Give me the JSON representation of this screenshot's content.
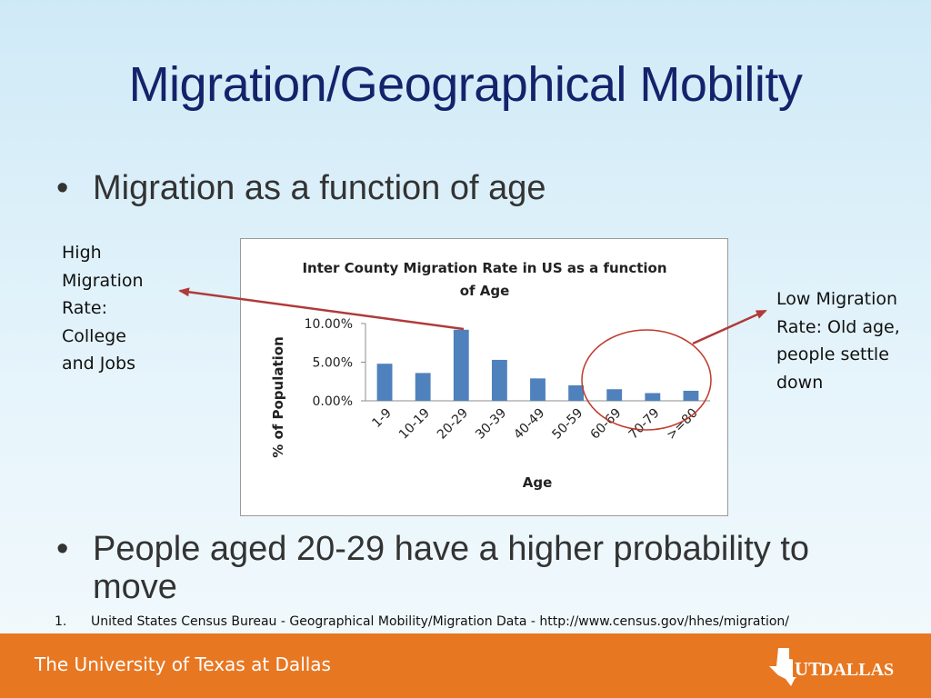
{
  "slide": {
    "title": "Migration/Geographical Mobility",
    "bullets": [
      "Migration as a function of age",
      "People aged 20-29 have a higher probability to move"
    ],
    "bullet_symbol": "•"
  },
  "annotations": {
    "left_lines": [
      "High",
      "Migration",
      "Rate:",
      "College",
      "and Jobs"
    ],
    "right_lines": [
      "Low Migration",
      "Rate: Old age,",
      "people settle",
      "down"
    ],
    "arrow_color": "#b03a3a",
    "circle_color": "#c0392b"
  },
  "footnote": {
    "number": "1.",
    "text": "United States Census Bureau - Geographical Mobility/Migration Data - http://www.census.gov/hhes/migration/"
  },
  "footer": {
    "university": "The University of Texas at Dallas",
    "logo_text": "UT DALLAS",
    "logo_ut": "UT",
    "logo_dallas": "DALLAS",
    "color": "#e87722"
  },
  "chart_data": {
    "type": "bar",
    "title_lines": [
      "Inter County Migration Rate in US as a function",
      "of Age"
    ],
    "xlabel": "Age",
    "ylabel": "% of Population",
    "categories": [
      "1-9",
      "10-19",
      "20-29",
      "30-39",
      "40-49",
      "50-59",
      "60-69",
      "70-79",
      ">=80"
    ],
    "values": [
      4.8,
      3.6,
      9.2,
      5.3,
      2.9,
      2.0,
      1.5,
      1.0,
      1.3
    ],
    "ylim": [
      0,
      10
    ],
    "yticks": [
      "0.00%",
      "5.00%",
      "10.00%"
    ],
    "ytick_values": [
      0,
      5,
      10
    ],
    "bar_color": "#4f81bd",
    "grid": false,
    "legend": "none"
  }
}
